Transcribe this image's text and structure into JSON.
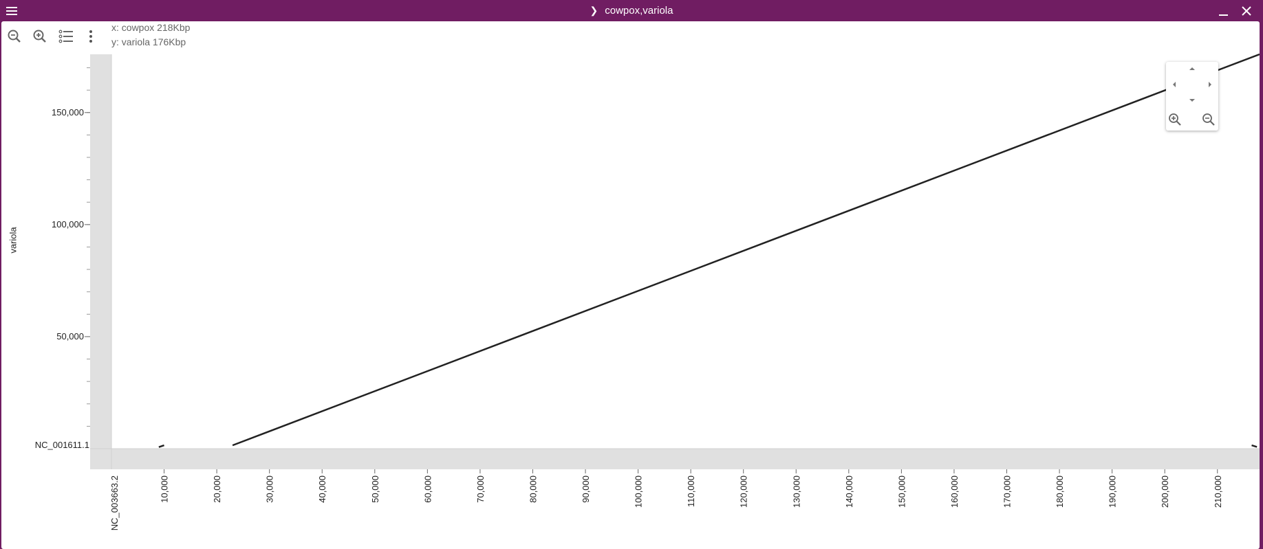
{
  "window": {
    "title": "cowpox,variola",
    "menu_icon": "hamburger-menu-icon",
    "expand_icon": "chevron-right-icon",
    "minimize_icon": "minimize-icon",
    "close_icon": "close-icon"
  },
  "toolbar": {
    "icons": [
      "zoom-out-icon",
      "zoom-in-icon",
      "view-list-icon",
      "more-vert-icon"
    ]
  },
  "info": {
    "x_line": "x: cowpox 218Kbp",
    "y_line": "y: variola 176Kbp"
  },
  "colors": {
    "titlebar": "#701d62",
    "line": "#222222",
    "band": "#e0e0e0"
  },
  "chart_data": {
    "type": "line",
    "title": "",
    "xlabel": "",
    "ylabel": "variola",
    "x_sequence_label": "NC_003663.2",
    "y_sequence_label": "NC_001611.1",
    "xlim": [
      0,
      218000
    ],
    "ylim": [
      0,
      176000
    ],
    "x_ticks": [
      10000,
      20000,
      30000,
      40000,
      50000,
      60000,
      70000,
      80000,
      90000,
      100000,
      110000,
      120000,
      130000,
      140000,
      150000,
      160000,
      170000,
      180000,
      190000,
      200000,
      210000
    ],
    "x_tick_labels": [
      "10,000",
      "20,000",
      "30,000",
      "40,000",
      "50,000",
      "60,000",
      "70,000",
      "80,000",
      "90,000",
      "100,000",
      "110,000",
      "120,000",
      "130,000",
      "140,000",
      "150,000",
      "160,000",
      "170,000",
      "180,000",
      "190,000",
      "200,000",
      "210,000"
    ],
    "y_ticks": [
      50000,
      100000,
      150000
    ],
    "y_tick_labels": [
      "50,000",
      "100,000",
      "150,000"
    ],
    "y_minor_step": 10000,
    "grid": false,
    "series": [
      {
        "x": [
          23000,
          218000
        ],
        "y": [
          1500,
          176000
        ]
      },
      {
        "x": [
          9000,
          10000
        ],
        "y": [
          700,
          1500
        ]
      },
      {
        "x": [
          216500,
          217500
        ],
        "y": [
          1500,
          800
        ]
      }
    ]
  },
  "nav": {
    "icons": [
      "pan-up-icon",
      "pan-left-icon",
      "pan-right-icon",
      "pan-down-icon",
      "nav-zoom-in-icon",
      "nav-zoom-out-icon"
    ]
  }
}
